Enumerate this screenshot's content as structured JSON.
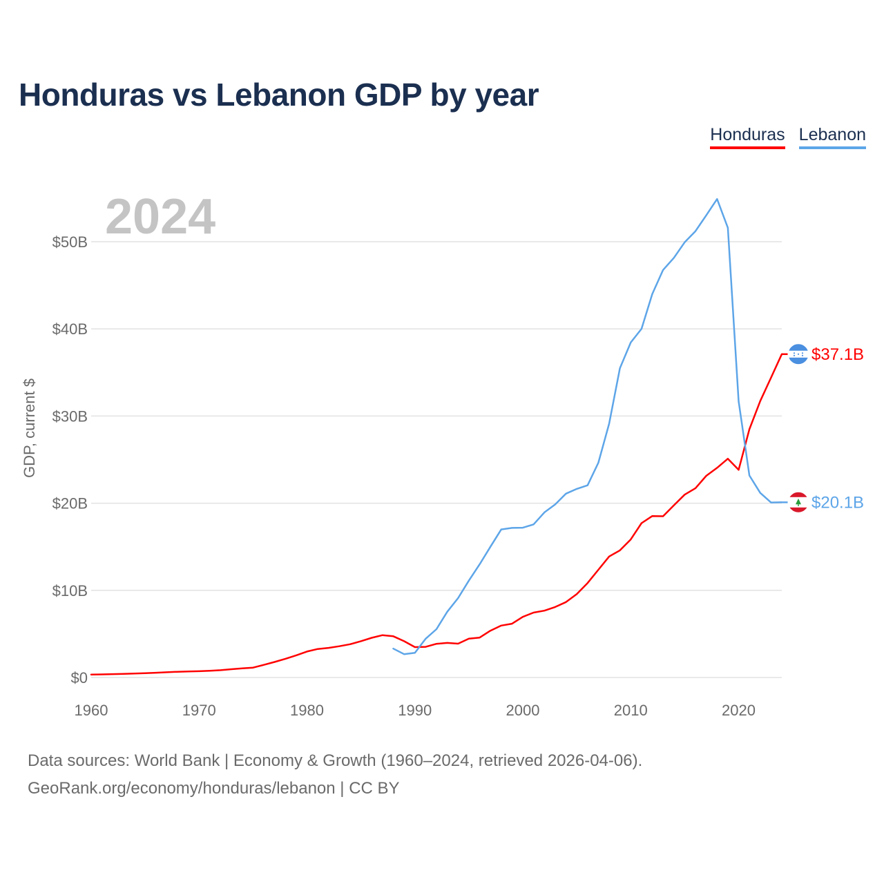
{
  "chart_data": {
    "type": "line",
    "title": "Honduras vs Lebanon GDP by year",
    "current_year": "2024",
    "xlabel": "",
    "ylabel": "GDP, current $",
    "xlim": [
      1960,
      2024
    ],
    "ylim": [
      0,
      50
    ],
    "x_ticks": [
      1960,
      1970,
      1980,
      1990,
      2000,
      2010,
      2020
    ],
    "x_tick_labels": [
      "1960",
      "1970",
      "1980",
      "1990",
      "2000",
      "2010",
      "2020"
    ],
    "y_ticks": [
      0,
      10,
      20,
      30,
      40,
      50
    ],
    "y_tick_labels": [
      "$0",
      "$10B",
      "$20B",
      "$30B",
      "$40B",
      "$50B"
    ],
    "grid": true,
    "legend_position": "top-right",
    "series": [
      {
        "name": "Honduras",
        "color": "#ff0000",
        "end_label": "$37.1B",
        "flag_icon": "honduras-flag-icon",
        "x": [
          1960,
          1961,
          1962,
          1963,
          1964,
          1965,
          1966,
          1967,
          1968,
          1969,
          1970,
          1971,
          1972,
          1973,
          1974,
          1975,
          1976,
          1977,
          1978,
          1979,
          1980,
          1981,
          1982,
          1983,
          1984,
          1985,
          1986,
          1987,
          1988,
          1989,
          1990,
          1991,
          1992,
          1993,
          1994,
          1995,
          1996,
          1997,
          1998,
          1999,
          2000,
          2001,
          2002,
          2003,
          2004,
          2005,
          2006,
          2007,
          2008,
          2009,
          2010,
          2011,
          2012,
          2013,
          2014,
          2015,
          2016,
          2017,
          2018,
          2019,
          2020,
          2021,
          2022,
          2023,
          2024
        ],
        "values": [
          0.34,
          0.36,
          0.39,
          0.42,
          0.45,
          0.5,
          0.55,
          0.6,
          0.66,
          0.7,
          0.72,
          0.77,
          0.84,
          0.95,
          1.05,
          1.13,
          1.45,
          1.78,
          2.15,
          2.54,
          2.98,
          3.27,
          3.4,
          3.59,
          3.82,
          4.17,
          4.56,
          4.86,
          4.73,
          4.17,
          3.49,
          3.52,
          3.87,
          3.97,
          3.88,
          4.45,
          4.58,
          5.37,
          5.96,
          6.17,
          6.96,
          7.45,
          7.67,
          8.09,
          8.65,
          9.57,
          10.84,
          12.36,
          13.88,
          14.59,
          15.84,
          17.71,
          18.53,
          18.5,
          19.76,
          20.98,
          21.72,
          23.14,
          24.06,
          25.1,
          23.83,
          28.49,
          31.72,
          34.4,
          37.1
        ]
      },
      {
        "name": "Lebanon",
        "color": "#5da5e8",
        "end_label": "$20.1B",
        "flag_icon": "lebanon-flag-icon",
        "x": [
          1988,
          1989,
          1990,
          1991,
          1992,
          1993,
          1994,
          1995,
          1996,
          1997,
          1998,
          1999,
          2000,
          2001,
          2002,
          2003,
          2004,
          2005,
          2006,
          2007,
          2008,
          2009,
          2010,
          2011,
          2012,
          2013,
          2014,
          2015,
          2016,
          2017,
          2018,
          2019,
          2020,
          2021,
          2022,
          2023,
          2024
        ],
        "values": [
          3.31,
          2.68,
          2.84,
          4.45,
          5.55,
          7.54,
          9.11,
          11.12,
          12.99,
          15.0,
          16.99,
          17.16,
          17.19,
          17.57,
          18.95,
          19.86,
          21.09,
          21.64,
          22.05,
          24.64,
          29.12,
          35.48,
          38.44,
          40.01,
          44.01,
          46.76,
          48.15,
          49.94,
          51.21,
          53.03,
          54.9,
          51.6,
          31.7,
          23.18,
          21.18,
          20.08,
          20.1
        ]
      }
    ],
    "source_note": "Data sources: World Bank | Economy & Growth (1960–2024, retrieved 2026-04-06).",
    "credit": "GeoRank.org/economy/honduras/lebanon | CC BY"
  }
}
